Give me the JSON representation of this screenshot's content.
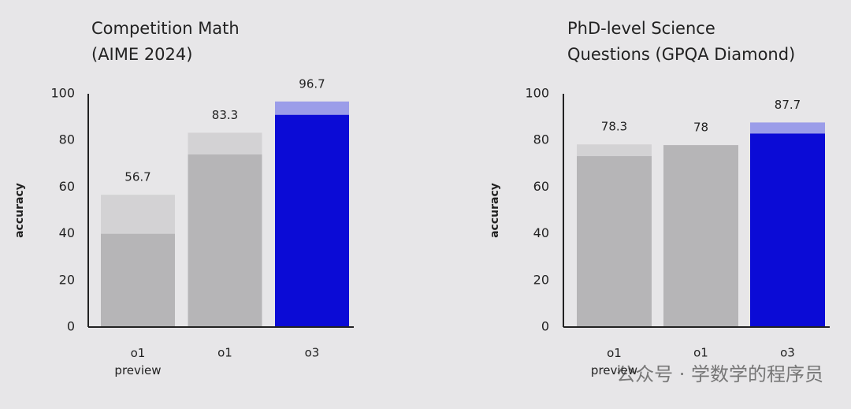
{
  "chart_data": [
    {
      "type": "bar",
      "stacked": true,
      "title": [
        "Competition Math",
        "(AIME 2024)"
      ],
      "ylabel": "accuracy",
      "categories": [
        "o1 preview",
        "o1",
        "o3"
      ],
      "series": [
        {
          "values": [
            40,
            74,
            91
          ],
          "colors": [
            "#b6b5b7",
            "#b6b5b7",
            "#0b0bd6"
          ]
        },
        {
          "values": [
            16.7,
            9.3,
            5.7
          ],
          "colors": [
            "#d3d2d4",
            "#d3d2d4",
            "#9b9de9"
          ]
        }
      ],
      "totals": [
        56.7,
        83.3,
        96.7
      ],
      "ylim": [
        0,
        100
      ],
      "yticks": [
        0,
        20,
        40,
        60,
        80,
        100
      ]
    },
    {
      "type": "bar",
      "stacked": true,
      "title": [
        "PhD-level Science",
        "Questions (GPQA Diamond)"
      ],
      "ylabel": "accuracy",
      "categories": [
        "o1 preview",
        "o1",
        "o3"
      ],
      "series": [
        {
          "values": [
            73.3,
            78.0,
            83
          ],
          "colors": [
            "#b6b5b7",
            "#b6b5b7",
            "#0b0bd6"
          ]
        },
        {
          "values": [
            5,
            0,
            4.7
          ],
          "colors": [
            "#d3d2d4",
            "#d3d2d4",
            "#9b9de9"
          ]
        }
      ],
      "totals": [
        78.3,
        78.0,
        87.7
      ],
      "ylim": [
        0,
        100
      ],
      "yticks": [
        0,
        20,
        40,
        60,
        80,
        100
      ]
    }
  ],
  "watermark": "公众号 · 学数学的程序员"
}
